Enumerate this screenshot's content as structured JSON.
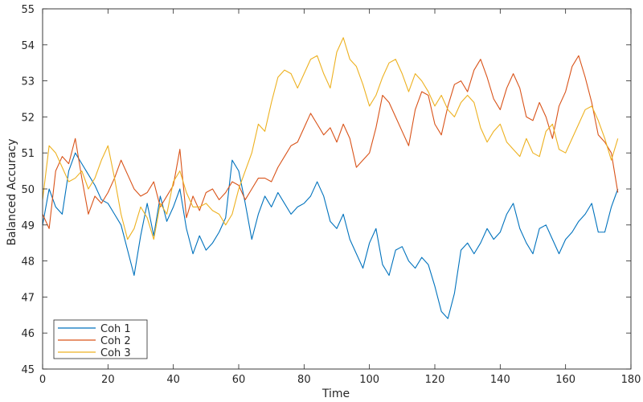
{
  "chart_data": {
    "type": "line",
    "xlabel": "Time",
    "ylabel": "Balanced Accuracy",
    "xlim": [
      0,
      180
    ],
    "ylim": [
      45,
      55
    ],
    "x_ticks": [
      0,
      20,
      40,
      60,
      80,
      100,
      120,
      140,
      160,
      180
    ],
    "y_ticks": [
      45,
      46,
      47,
      48,
      49,
      50,
      51,
      52,
      53,
      54,
      55
    ],
    "grid": false,
    "legend_position": "bottom-left",
    "series": [
      {
        "name": "Coh 1",
        "color": "#0072BD",
        "x": [
          0,
          2,
          4,
          6,
          8,
          10,
          12,
          14,
          16,
          18,
          20,
          22,
          24,
          26,
          28,
          30,
          32,
          34,
          36,
          38,
          40,
          42,
          44,
          46,
          48,
          50,
          52,
          54,
          56,
          58,
          60,
          62,
          64,
          66,
          68,
          70,
          72,
          74,
          76,
          78,
          80,
          82,
          84,
          86,
          88,
          90,
          92,
          94,
          96,
          98,
          100,
          102,
          104,
          106,
          108,
          110,
          112,
          114,
          116,
          118,
          120,
          122,
          124,
          126,
          128,
          130,
          132,
          134,
          136,
          138,
          140,
          142,
          144,
          146,
          148,
          150,
          152,
          154,
          156,
          158,
          160,
          162,
          164,
          166,
          168,
          170,
          172,
          174,
          176
        ],
        "y": [
          49.0,
          50.0,
          49.5,
          49.3,
          50.5,
          51.0,
          50.7,
          50.4,
          50.1,
          49.7,
          49.6,
          49.3,
          49.0,
          48.3,
          47.6,
          48.7,
          49.6,
          48.7,
          49.8,
          49.1,
          49.5,
          50.0,
          48.9,
          48.2,
          48.7,
          48.3,
          48.5,
          48.8,
          49.2,
          50.8,
          50.5,
          49.6,
          48.6,
          49.3,
          49.8,
          49.5,
          49.9,
          49.6,
          49.3,
          49.5,
          49.6,
          49.8,
          50.2,
          49.8,
          49.1,
          48.9,
          49.3,
          48.6,
          48.2,
          47.8,
          48.5,
          48.9,
          47.9,
          47.6,
          48.3,
          48.4,
          48.0,
          47.8,
          48.1,
          47.9,
          47.3,
          46.6,
          46.4,
          47.1,
          48.3,
          48.5,
          48.2,
          48.5,
          48.9,
          48.6,
          48.8,
          49.3,
          49.6,
          48.9,
          48.5,
          48.2,
          48.9,
          49.0,
          48.6,
          48.2,
          48.6,
          48.8,
          49.1,
          49.3,
          49.6,
          48.8,
          48.8,
          49.5,
          50.0
        ]
      },
      {
        "name": "Coh 2",
        "color": "#D95319",
        "x": [
          0,
          2,
          4,
          6,
          8,
          10,
          12,
          14,
          16,
          18,
          20,
          22,
          24,
          26,
          28,
          30,
          32,
          34,
          36,
          38,
          40,
          42,
          44,
          46,
          48,
          50,
          52,
          54,
          56,
          58,
          60,
          62,
          64,
          66,
          68,
          70,
          72,
          74,
          76,
          78,
          80,
          82,
          84,
          86,
          88,
          90,
          92,
          94,
          96,
          98,
          100,
          102,
          104,
          106,
          108,
          110,
          112,
          114,
          116,
          118,
          120,
          122,
          124,
          126,
          128,
          130,
          132,
          134,
          136,
          138,
          140,
          142,
          144,
          146,
          148,
          150,
          152,
          154,
          156,
          158,
          160,
          162,
          164,
          166,
          168,
          170,
          172,
          174,
          176
        ],
        "y": [
          49.3,
          48.9,
          50.5,
          50.9,
          50.7,
          51.4,
          50.3,
          49.3,
          49.8,
          49.6,
          49.9,
          50.3,
          50.8,
          50.4,
          50.0,
          49.8,
          49.9,
          50.2,
          49.5,
          49.8,
          50.1,
          51.1,
          49.2,
          49.8,
          49.4,
          49.9,
          50.0,
          49.7,
          49.9,
          50.2,
          50.1,
          49.7,
          50.0,
          50.3,
          50.3,
          50.2,
          50.6,
          50.9,
          51.2,
          51.3,
          51.7,
          52.1,
          51.8,
          51.5,
          51.7,
          51.3,
          51.8,
          51.4,
          50.6,
          50.8,
          51.0,
          51.7,
          52.6,
          52.4,
          52.0,
          51.6,
          51.2,
          52.2,
          52.7,
          52.6,
          51.8,
          51.5,
          52.3,
          52.9,
          53.0,
          52.7,
          53.3,
          53.6,
          53.1,
          52.5,
          52.2,
          52.8,
          53.2,
          52.8,
          52.0,
          51.9,
          52.4,
          52.0,
          51.4,
          52.3,
          52.7,
          53.4,
          53.7,
          53.1,
          52.4,
          51.5,
          51.3,
          51.0,
          49.9
        ]
      },
      {
        "name": "Coh 3",
        "color": "#EDB120",
        "x": [
          0,
          2,
          4,
          6,
          8,
          10,
          12,
          14,
          16,
          18,
          20,
          22,
          24,
          26,
          28,
          30,
          32,
          34,
          36,
          38,
          40,
          42,
          44,
          46,
          48,
          50,
          52,
          54,
          56,
          58,
          60,
          62,
          64,
          66,
          68,
          70,
          72,
          74,
          76,
          78,
          80,
          82,
          84,
          86,
          88,
          90,
          92,
          94,
          96,
          98,
          100,
          102,
          104,
          106,
          108,
          110,
          112,
          114,
          116,
          118,
          120,
          122,
          124,
          126,
          128,
          130,
          132,
          134,
          136,
          138,
          140,
          142,
          144,
          146,
          148,
          150,
          152,
          154,
          156,
          158,
          160,
          162,
          164,
          166,
          168,
          170,
          172,
          174,
          176
        ],
        "y": [
          49.7,
          51.2,
          51.0,
          50.6,
          50.2,
          50.3,
          50.5,
          50.0,
          50.3,
          50.8,
          51.2,
          50.3,
          49.3,
          48.6,
          48.9,
          49.5,
          49.2,
          48.6,
          49.6,
          49.3,
          50.2,
          50.5,
          49.9,
          49.5,
          49.5,
          49.6,
          49.4,
          49.3,
          49.0,
          49.3,
          50.0,
          50.5,
          51.0,
          51.8,
          51.6,
          52.4,
          53.1,
          53.3,
          53.2,
          52.8,
          53.2,
          53.6,
          53.7,
          53.2,
          52.8,
          53.8,
          54.2,
          53.6,
          53.4,
          52.9,
          52.3,
          52.6,
          53.1,
          53.5,
          53.6,
          53.2,
          52.7,
          53.2,
          53.0,
          52.7,
          52.3,
          52.6,
          52.2,
          52.0,
          52.4,
          52.6,
          52.4,
          51.7,
          51.3,
          51.6,
          51.8,
          51.3,
          51.1,
          50.9,
          51.4,
          51.0,
          50.9,
          51.6,
          51.8,
          51.1,
          51.0,
          51.4,
          51.8,
          52.2,
          52.3,
          51.9,
          51.4,
          50.8,
          51.4
        ]
      }
    ]
  }
}
